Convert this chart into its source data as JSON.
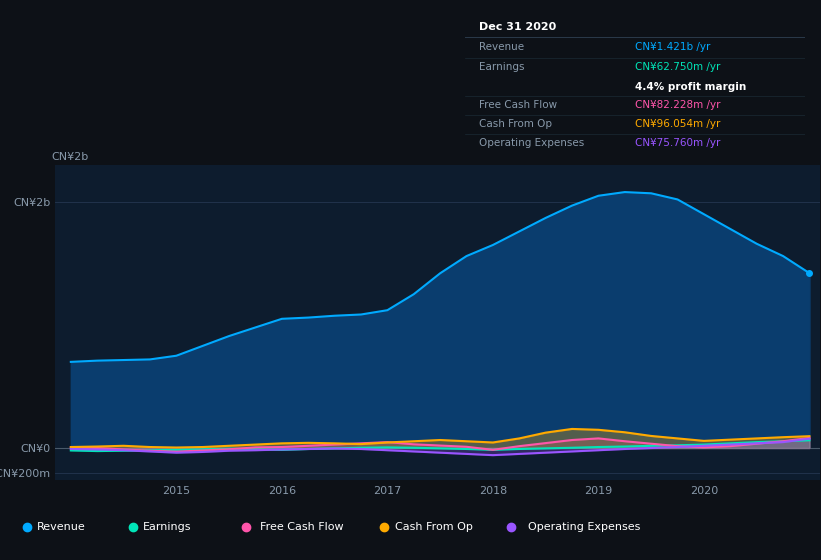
{
  "bg_color": "#0d1117",
  "plot_bg_color": "#0d1c2e",
  "grid_color": "#243650",
  "text_color": "#8899aa",
  "white": "#ffffff",
  "x": [
    2014.0,
    2014.25,
    2014.5,
    2014.75,
    2015.0,
    2015.25,
    2015.5,
    2015.75,
    2016.0,
    2016.25,
    2016.5,
    2016.75,
    2017.0,
    2017.25,
    2017.5,
    2017.75,
    2018.0,
    2018.25,
    2018.5,
    2018.75,
    2019.0,
    2019.25,
    2019.5,
    2019.75,
    2020.0,
    2020.25,
    2020.5,
    2020.75,
    2021.0
  ],
  "revenue": [
    700,
    710,
    715,
    720,
    750,
    830,
    910,
    980,
    1050,
    1060,
    1075,
    1085,
    1120,
    1250,
    1420,
    1560,
    1650,
    1760,
    1870,
    1970,
    2050,
    2080,
    2070,
    2020,
    1900,
    1780,
    1660,
    1560,
    1421
  ],
  "earnings": [
    -20,
    -25,
    -22,
    -18,
    -15,
    -10,
    -5,
    -10,
    -15,
    -8,
    -3,
    2,
    5,
    2,
    -3,
    -8,
    -15,
    -8,
    -3,
    2,
    8,
    12,
    18,
    22,
    28,
    38,
    48,
    55,
    62.75
  ],
  "free_cash_flow": [
    5,
    0,
    -12,
    -22,
    -30,
    -20,
    -10,
    5,
    8,
    18,
    28,
    38,
    48,
    30,
    20,
    10,
    -15,
    15,
    40,
    65,
    78,
    55,
    35,
    15,
    5,
    15,
    35,
    55,
    82.228
  ],
  "cash_from_op": [
    8,
    12,
    18,
    8,
    4,
    8,
    18,
    28,
    38,
    42,
    38,
    32,
    45,
    55,
    65,
    55,
    45,
    78,
    125,
    155,
    148,
    128,
    98,
    78,
    58,
    68,
    78,
    88,
    96.054
  ],
  "operating_expenses": [
    -8,
    -12,
    -18,
    -28,
    -38,
    -32,
    -22,
    -18,
    -12,
    -8,
    -4,
    -8,
    -18,
    -28,
    -38,
    -48,
    -58,
    -48,
    -38,
    -28,
    -18,
    -8,
    0,
    8,
    18,
    28,
    38,
    48,
    75.76
  ],
  "revenue_color": "#00aaff",
  "revenue_fill": "#0a3d6e",
  "earnings_color": "#00e5b8",
  "fcf_color": "#ff55aa",
  "cop_color": "#ffaa00",
  "opex_color": "#9955ff",
  "ylim_min": -260,
  "ylim_max": 2300,
  "xlim_min": 2013.85,
  "xlim_max": 2021.1,
  "yticks": [
    2000,
    0,
    -200
  ],
  "ytick_labels": [
    "CN¥2b",
    "CN¥0",
    "-CN¥200m"
  ],
  "xticks": [
    2015,
    2016,
    2017,
    2018,
    2019,
    2020
  ],
  "tooltip_title": "Dec 31 2020",
  "tt_revenue_label": "Revenue",
  "tt_revenue_value": "CN¥1.421b /yr",
  "tt_revenue_color": "#00aaff",
  "tt_earnings_label": "Earnings",
  "tt_earnings_value": "CN¥62.750m /yr",
  "tt_earnings_color": "#00e5b8",
  "tt_profit_margin": "4.4% profit margin",
  "tt_fcf_label": "Free Cash Flow",
  "tt_fcf_value": "CN¥82.228m /yr",
  "tt_fcf_color": "#ff55aa",
  "tt_cop_label": "Cash From Op",
  "tt_cop_value": "CN¥96.054m /yr",
  "tt_cop_color": "#ffaa00",
  "tt_opex_label": "Operating Expenses",
  "tt_opex_value": "CN¥75.760m /yr",
  "tt_opex_color": "#9955ff",
  "legend_labels": [
    "Revenue",
    "Earnings",
    "Free Cash Flow",
    "Cash From Op",
    "Operating Expenses"
  ],
  "legend_colors": [
    "#00aaff",
    "#00e5b8",
    "#ff55aa",
    "#ffaa00",
    "#9955ff"
  ]
}
